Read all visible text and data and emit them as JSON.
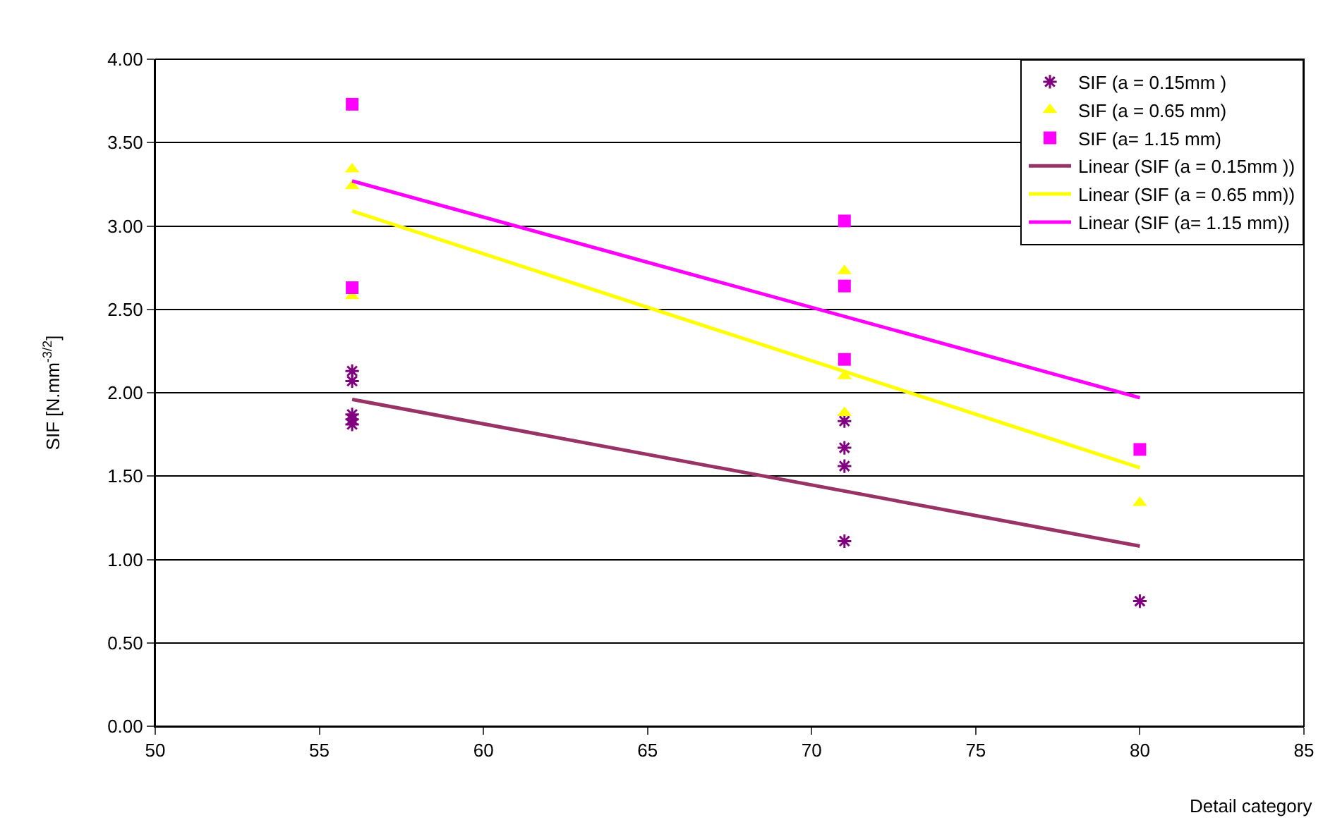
{
  "chart_data": {
    "type": "scatter",
    "xlabel": "Detail category",
    "ylabel": "SIF [N.mm$^{-3/2}$]",
    "xlim": [
      50,
      85
    ],
    "xticks": [
      50,
      55,
      60,
      65,
      70,
      75,
      80,
      85
    ],
    "ylim": [
      0,
      4
    ],
    "yticks": [
      {
        "value": 0,
        "label": "0.00"
      },
      {
        "value": 0.5,
        "label": "0.50"
      },
      {
        "value": 1,
        "label": "1.00"
      },
      {
        "value": 1.5,
        "label": "1.50"
      },
      {
        "value": 2,
        "label": "2.00"
      },
      {
        "value": 2.5,
        "label": "2.50"
      },
      {
        "value": 3,
        "label": "3.00"
      },
      {
        "value": 3.5,
        "label": "3.50"
      },
      {
        "value": 4,
        "label": "4.00"
      }
    ],
    "grid": "y",
    "legend": "top right",
    "series": [
      {
        "name": "SIF (a = 0.15mm )",
        "marker": "cross",
        "color": "#800080",
        "x": [
          56,
          56,
          56,
          56,
          56,
          71,
          71,
          71,
          71,
          80
        ],
        "values": [
          2.13,
          2.07,
          1.87,
          1.84,
          1.81,
          1.83,
          1.67,
          1.56,
          1.11,
          0.75
        ]
      },
      {
        "name": "SIF (a = 0.65 mm)",
        "marker": "triangle",
        "color": "#ffff00",
        "x": [
          56,
          56,
          56,
          71,
          71,
          71,
          80
        ],
        "values": [
          3.34,
          3.24,
          2.58,
          2.73,
          2.1,
          1.88,
          1.34
        ]
      },
      {
        "name": "SIF (a= 1.15 mm)",
        "marker": "square",
        "color": "#ff00ff",
        "x": [
          56,
          56,
          71,
          71,
          71,
          80
        ],
        "values": [
          3.73,
          2.63,
          3.03,
          2.64,
          2.2,
          1.66
        ]
      },
      {
        "name": "Linear (SIF (a = 0.15mm ))",
        "type": "line",
        "color": "#993366",
        "x": [
          56,
          80
        ],
        "values": [
          1.96,
          1.08
        ]
      },
      {
        "name": "Linear (SIF (a = 0.65 mm))",
        "type": "line",
        "color": "#ffff00",
        "x": [
          56,
          80
        ],
        "values": [
          3.09,
          1.55
        ]
      },
      {
        "name": "Linear (SIF (a= 1.15 mm))",
        "type": "line",
        "color": "#ff00ff",
        "x": [
          56,
          80
        ],
        "values": [
          3.27,
          1.97
        ]
      }
    ]
  }
}
